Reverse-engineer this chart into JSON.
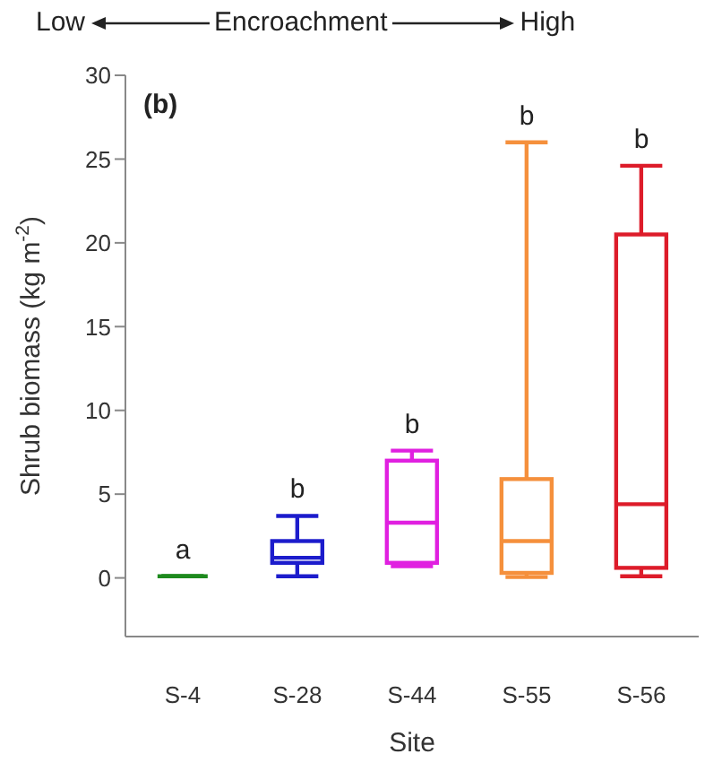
{
  "chart_data": {
    "type": "box",
    "xlabel": "Site",
    "ylabel": "Shrub biomass (kg m$^{-2}$)",
    "categories": [
      "S-4",
      "S-28",
      "S-44",
      "S-55",
      "S-56"
    ],
    "colors": [
      "#1e8a1e",
      "#1c1ccc",
      "#e020e0",
      "#f5903c",
      "#dd1c2a"
    ],
    "boxes": [
      {
        "low": 0.1,
        "q1": 0.1,
        "median": 0.1,
        "q3": 0.1,
        "high": 0.1
      },
      {
        "low": 0.1,
        "q1": 0.9,
        "median": 1.2,
        "q3": 2.2,
        "high": 3.7
      },
      {
        "low": 0.7,
        "q1": 0.9,
        "median": 3.3,
        "q3": 7.0,
        "high": 7.6
      },
      {
        "low": 0.05,
        "q1": 0.3,
        "median": 2.2,
        "q3": 5.9,
        "high": 26
      },
      {
        "low": 0.1,
        "q1": 0.6,
        "median": 4.4,
        "q3": 20.5,
        "high": 24.6
      }
    ],
    "ylim": [
      -3.5,
      30
    ],
    "yticks": [
      0,
      5,
      10,
      15,
      20,
      25,
      30
    ],
    "annotations": [
      "Low",
      "Encroachment",
      "High",
      "(b)",
      {
        "text": "a",
        "x": "S-4",
        "y": 0.1
      },
      {
        "text": "b",
        "x": "S-28",
        "y": 3.7
      },
      {
        "text": "b",
        "x": "S-44",
        "y": 7.6
      },
      {
        "text": "b",
        "x": "S-55",
        "y": 26
      },
      {
        "text": "b",
        "x": "S-56",
        "y": 24.6
      }
    ]
  }
}
